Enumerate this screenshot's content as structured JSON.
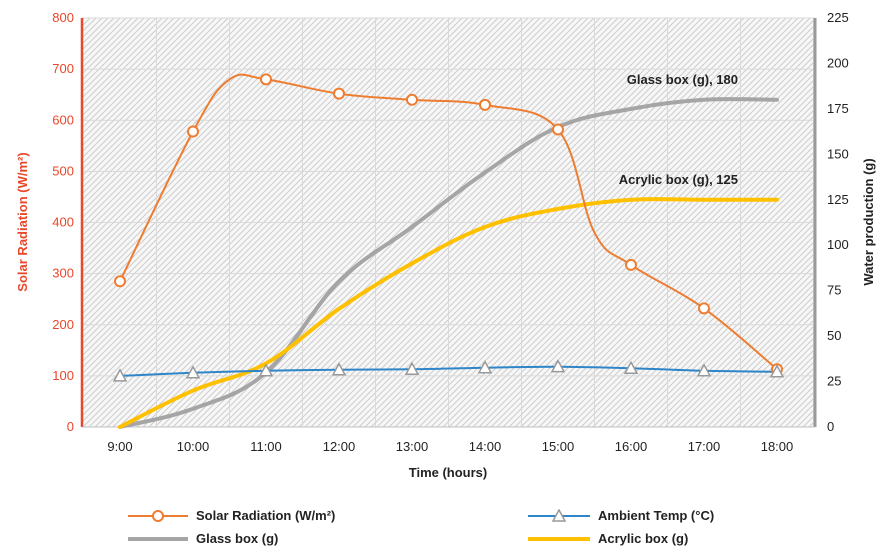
{
  "chart_data": {
    "type": "line",
    "xlabel": "Time (hours)",
    "ylabel_left": "Solar Radiation (W/m²)",
    "ylabel_right": "Water production (g)",
    "categories": [
      "9:00",
      "10:00",
      "11:00",
      "12:00",
      "13:00",
      "14:00",
      "15:00",
      "16:00",
      "17:00",
      "18:00"
    ],
    "ylim_left": [
      0,
      800
    ],
    "ylim_right": [
      0,
      225
    ],
    "yticks_left": [
      0,
      100,
      200,
      300,
      400,
      500,
      600,
      700,
      800
    ],
    "yticks_right": [
      0,
      25,
      50,
      75,
      100,
      125,
      150,
      175,
      200,
      225
    ],
    "grid": true,
    "legend_position": "bottom",
    "series": [
      {
        "name": "Solar Radiation (W/m²)",
        "axis": "left",
        "color": "#ED7D31",
        "marker": "circle",
        "x": [
          9.0,
          10.0,
          10.5,
          11.0,
          12.0,
          13.0,
          14.0,
          15.0,
          15.5,
          16.0,
          17.0,
          18.0
        ],
        "values": [
          285,
          578,
          680,
          680,
          652,
          640,
          630,
          582,
          380,
          317,
          232,
          113
        ]
      },
      {
        "name": "Ambient Temp (°C)",
        "axis": "left",
        "color": "#2E86C8",
        "marker": "triangle",
        "x": [
          9.0,
          10.0,
          11.0,
          12.0,
          13.0,
          14.0,
          15.0,
          16.0,
          17.0,
          18.0
        ],
        "values": [
          100,
          106,
          110,
          112,
          113,
          116,
          118,
          115,
          110,
          108
        ]
      },
      {
        "name": "Glass box (g)",
        "axis": "right",
        "color": "#A5A5A5",
        "marker": "none",
        "x": [
          9.0,
          10.0,
          11.0,
          12.0,
          13.0,
          14.0,
          15.0,
          16.0,
          17.0,
          18.0
        ],
        "values": [
          0,
          10,
          30,
          80,
          110,
          140,
          165,
          175,
          180,
          180
        ]
      },
      {
        "name": "Acrylic box (g)",
        "axis": "right",
        "color": "#FFC000",
        "marker": "none",
        "x": [
          9.0,
          10.0,
          11.0,
          12.0,
          13.0,
          14.0,
          15.0,
          16.0,
          17.0,
          18.0
        ],
        "values": [
          0,
          20,
          35,
          65,
          90,
          110,
          120,
          125,
          125,
          125
        ]
      }
    ],
    "annotations": [
      {
        "text": "Glass box (g), 180",
        "series": "Glass box (g)",
        "x": 17.0,
        "y": 180
      },
      {
        "text": "Acrylic box (g), 125",
        "series": "Acrylic box (g)",
        "x": 17.0,
        "y": 125
      }
    ]
  }
}
